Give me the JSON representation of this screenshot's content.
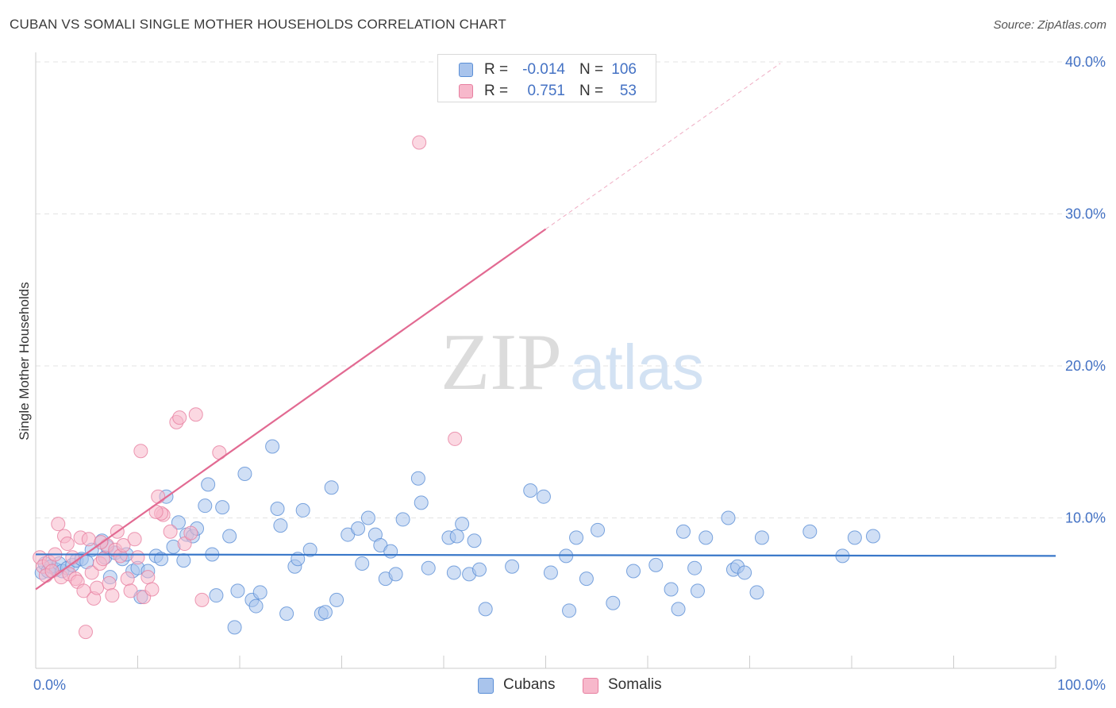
{
  "header": {
    "title": "CUBAN VS SOMALI SINGLE MOTHER HOUSEHOLDS CORRELATION CHART",
    "source": "Source: ZipAtlas.com"
  },
  "watermark": {
    "zip": "ZIP",
    "atlas": "atlas"
  },
  "legend": {
    "cubans": {
      "r_label": "R =",
      "r_value": "-0.014",
      "n_label": "N =",
      "n_value": "106"
    },
    "somalis": {
      "r_label": "R =",
      "r_value": "0.751",
      "n_label": "N =",
      "n_value": "53"
    }
  },
  "colors": {
    "cubans_fill": "#a9c4ec",
    "cubans_stroke": "#5b8fd6",
    "cubans_line": "#3a78c9",
    "somalis_fill": "#f7b8cb",
    "somalis_stroke": "#e77fa0",
    "somalis_line": "#e26a92",
    "tick_text": "#4472c4"
  },
  "chart_data": {
    "type": "scatter",
    "title": "CUBAN VS SOMALI SINGLE MOTHER HOUSEHOLDS CORRELATION CHART",
    "xlabel": "",
    "ylabel": "Single Mother Households",
    "xlim": [
      0,
      100
    ],
    "ylim": [
      0,
      40
    ],
    "x_tick_labels": [
      "0.0%",
      "100.0%"
    ],
    "y_ticks": [
      10,
      20,
      30,
      40
    ],
    "y_tick_labels": [
      "10.0%",
      "20.0%",
      "30.0%",
      "40.0%"
    ],
    "legend": [
      "Cubans",
      "Somalis"
    ],
    "series": [
      {
        "name": "Cubans",
        "trend": {
          "x": [
            0,
            100
          ],
          "y": [
            7.6,
            7.5
          ]
        },
        "points": [
          [
            0.6,
            6.4
          ],
          [
            0.9,
            7.0
          ],
          [
            1.2,
            6.5
          ],
          [
            1.5,
            6.8
          ],
          [
            2.0,
            6.6
          ],
          [
            2.3,
            7.0
          ],
          [
            2.6,
            6.5
          ],
          [
            3.1,
            6.7
          ],
          [
            3.6,
            6.9
          ],
          [
            4.0,
            7.2
          ],
          [
            4.5,
            7.3
          ],
          [
            5.0,
            7.1
          ],
          [
            5.5,
            7.9
          ],
          [
            6.5,
            8.5
          ],
          [
            6.8,
            7.4
          ],
          [
            7.0,
            8.1
          ],
          [
            7.3,
            6.1
          ],
          [
            7.8,
            7.7
          ],
          [
            8.5,
            7.3
          ],
          [
            8.9,
            7.6
          ],
          [
            9.5,
            6.5
          ],
          [
            10.0,
            6.7
          ],
          [
            10.3,
            4.8
          ],
          [
            11.0,
            6.5
          ],
          [
            11.8,
            7.5
          ],
          [
            12.3,
            7.3
          ],
          [
            12.8,
            11.4
          ],
          [
            13.5,
            8.1
          ],
          [
            14.0,
            9.7
          ],
          [
            14.5,
            7.2
          ],
          [
            14.8,
            8.9
          ],
          [
            15.4,
            8.8
          ],
          [
            15.8,
            9.3
          ],
          [
            16.6,
            10.8
          ],
          [
            16.9,
            12.2
          ],
          [
            17.3,
            7.6
          ],
          [
            17.7,
            4.9
          ],
          [
            18.3,
            10.7
          ],
          [
            19.0,
            8.8
          ],
          [
            19.5,
            2.8
          ],
          [
            19.8,
            5.2
          ],
          [
            20.5,
            12.9
          ],
          [
            21.2,
            4.6
          ],
          [
            21.6,
            4.2
          ],
          [
            22.0,
            5.1
          ],
          [
            23.2,
            14.7
          ],
          [
            23.7,
            10.6
          ],
          [
            24.0,
            9.5
          ],
          [
            24.6,
            3.7
          ],
          [
            25.4,
            6.8
          ],
          [
            25.7,
            7.3
          ],
          [
            26.2,
            10.5
          ],
          [
            26.9,
            7.9
          ],
          [
            28.0,
            3.7
          ],
          [
            28.4,
            3.8
          ],
          [
            29.0,
            12.0
          ],
          [
            29.5,
            4.6
          ],
          [
            30.6,
            8.9
          ],
          [
            31.6,
            9.3
          ],
          [
            32.0,
            7.0
          ],
          [
            32.6,
            10.0
          ],
          [
            33.3,
            8.9
          ],
          [
            33.8,
            8.2
          ],
          [
            34.3,
            6.0
          ],
          [
            34.8,
            7.8
          ],
          [
            35.3,
            6.3
          ],
          [
            36.0,
            9.9
          ],
          [
            37.5,
            12.6
          ],
          [
            37.8,
            11.0
          ],
          [
            38.5,
            6.7
          ],
          [
            40.5,
            8.7
          ],
          [
            41.0,
            6.4
          ],
          [
            41.3,
            8.8
          ],
          [
            41.8,
            9.6
          ],
          [
            42.5,
            6.3
          ],
          [
            43.0,
            8.5
          ],
          [
            43.5,
            6.6
          ],
          [
            44.1,
            4.0
          ],
          [
            46.7,
            6.8
          ],
          [
            48.5,
            11.8
          ],
          [
            49.8,
            11.4
          ],
          [
            50.5,
            6.4
          ],
          [
            52.0,
            7.5
          ],
          [
            53.0,
            8.7
          ],
          [
            54.0,
            6.0
          ],
          [
            55.1,
            9.2
          ],
          [
            56.6,
            4.4
          ],
          [
            58.6,
            6.5
          ],
          [
            60.8,
            6.9
          ],
          [
            62.3,
            5.3
          ],
          [
            63.0,
            4.0
          ],
          [
            63.5,
            9.1
          ],
          [
            64.6,
            6.7
          ],
          [
            64.9,
            5.2
          ],
          [
            65.7,
            8.7
          ],
          [
            67.9,
            10.0
          ],
          [
            68.4,
            6.6
          ],
          [
            68.8,
            6.8
          ],
          [
            69.5,
            6.4
          ],
          [
            70.7,
            5.1
          ],
          [
            71.2,
            8.7
          ],
          [
            75.9,
            9.1
          ],
          [
            79.1,
            7.5
          ],
          [
            80.3,
            8.7
          ],
          [
            82.1,
            8.8
          ],
          [
            52.3,
            3.9
          ]
        ]
      },
      {
        "name": "Somalis",
        "trend": {
          "x": [
            0,
            50
          ],
          "y": [
            5.3,
            29.0
          ]
        },
        "points": [
          [
            0.4,
            7.4
          ],
          [
            0.7,
            6.8
          ],
          [
            1.0,
            6.2
          ],
          [
            1.3,
            7.1
          ],
          [
            1.6,
            6.5
          ],
          [
            1.9,
            7.6
          ],
          [
            2.2,
            9.6
          ],
          [
            2.5,
            6.1
          ],
          [
            2.8,
            8.8
          ],
          [
            3.1,
            8.3
          ],
          [
            3.3,
            6.3
          ],
          [
            3.6,
            7.4
          ],
          [
            3.9,
            6.0
          ],
          [
            4.1,
            5.8
          ],
          [
            4.4,
            8.7
          ],
          [
            4.7,
            5.2
          ],
          [
            4.9,
            2.5
          ],
          [
            5.2,
            8.6
          ],
          [
            5.5,
            6.4
          ],
          [
            5.7,
            4.7
          ],
          [
            6.0,
            5.4
          ],
          [
            6.3,
            7.0
          ],
          [
            6.6,
            7.3
          ],
          [
            7.0,
            8.2
          ],
          [
            7.2,
            5.7
          ],
          [
            7.5,
            4.9
          ],
          [
            7.8,
            7.9
          ],
          [
            8.0,
            9.1
          ],
          [
            8.3,
            7.5
          ],
          [
            8.6,
            8.2
          ],
          [
            9.0,
            6.0
          ],
          [
            9.3,
            5.2
          ],
          [
            9.7,
            8.6
          ],
          [
            10.0,
            7.4
          ],
          [
            10.3,
            14.4
          ],
          [
            10.6,
            4.8
          ],
          [
            11.0,
            6.1
          ],
          [
            11.4,
            5.3
          ],
          [
            12.0,
            11.4
          ],
          [
            12.5,
            10.2
          ],
          [
            12.3,
            10.3
          ],
          [
            13.2,
            9.1
          ],
          [
            13.8,
            16.3
          ],
          [
            14.1,
            16.6
          ],
          [
            14.6,
            8.3
          ],
          [
            15.2,
            9.0
          ],
          [
            15.7,
            16.8
          ],
          [
            16.3,
            4.6
          ],
          [
            18.0,
            14.3
          ],
          [
            11.8,
            10.4
          ],
          [
            6.4,
            8.4
          ],
          [
            37.6,
            34.7
          ],
          [
            41.1,
            15.2
          ]
        ]
      }
    ]
  }
}
